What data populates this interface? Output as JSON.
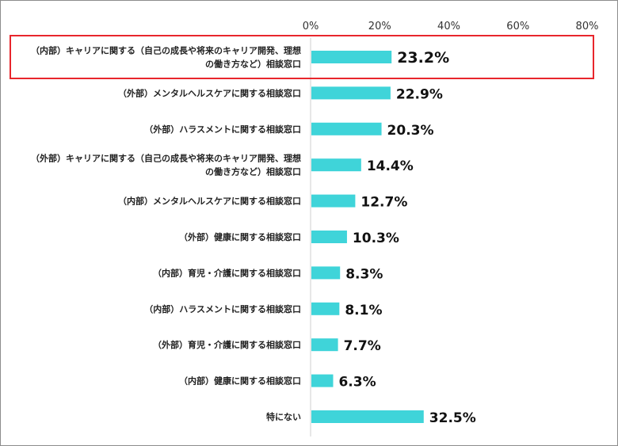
{
  "chart_data": {
    "type": "bar",
    "orientation": "horizontal",
    "title": "",
    "xlabel": "",
    "ylabel": "",
    "xlim": [
      0,
      80
    ],
    "ticks": [
      "0%",
      "20%",
      "40%",
      "60%",
      "80%"
    ],
    "tick_values": [
      0,
      20,
      40,
      60,
      80
    ],
    "grid": false,
    "legend": "none",
    "bar_color": "#3fd4d9",
    "highlight_color": "#e8262c",
    "highlight_index": 0,
    "categories": [
      [
        "（内部）キャリアに関する（自己の成長や将来のキャリア開発、理想",
        "の働き方など）相談窓口"
      ],
      [
        "（外部）メンタルヘルスケアに関する相談窓口"
      ],
      [
        "（外部）ハラスメントに関する相談窓口"
      ],
      [
        "（外部）キャリアに関する（自己の成長や将来のキャリア開発、理想",
        "の働き方など）相談窓口"
      ],
      [
        "（内部）メンタルヘルスケアに関する相談窓口"
      ],
      [
        "（外部）健康に関する相談窓口"
      ],
      [
        "（内部）育児・介護に関する相談窓口"
      ],
      [
        "（内部）ハラスメントに関する相談窓口"
      ],
      [
        "（外部）育児・介護に関する相談窓口"
      ],
      [
        "（内部）健康に関する相談窓口"
      ],
      [
        "特にない"
      ]
    ],
    "values": [
      23.2,
      22.9,
      20.3,
      14.4,
      12.7,
      10.3,
      8.3,
      8.1,
      7.7,
      6.3,
      32.5
    ],
    "value_labels": [
      "23.2%",
      "22.9%",
      "20.3%",
      "14.4%",
      "12.7%",
      "10.3%",
      "8.3%",
      "8.1%",
      "7.7%",
      "6.3%",
      "32.5%"
    ]
  }
}
